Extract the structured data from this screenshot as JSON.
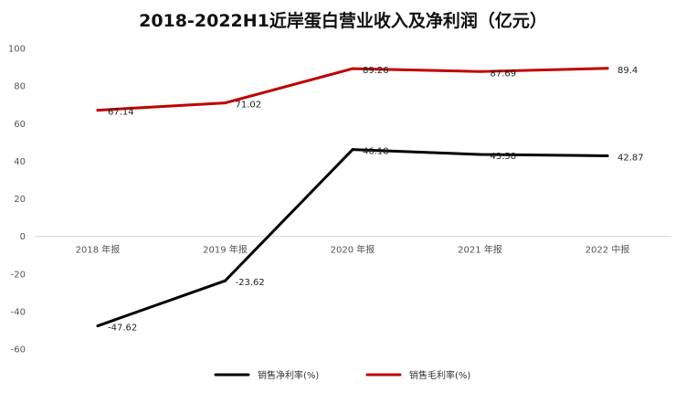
{
  "chart_data": {
    "type": "line",
    "title": "2018-2022H1近岸蛋白营业收入及净利润（亿元）",
    "categories": [
      "2018 年报",
      "2019 年报",
      "2020 年报",
      "2021 年报",
      "2022 中报"
    ],
    "series": [
      {
        "name": "销售净利率(%)",
        "color": "#000000",
        "values": [
          -47.62,
          -23.62,
          46.18,
          43.58,
          42.87
        ],
        "labels": [
          "-47.62",
          "-23.62",
          "46.18",
          "43.58",
          "42.87"
        ]
      },
      {
        "name": "销售毛利率(%)",
        "color": "#c00000",
        "values": [
          67.14,
          71.02,
          89.26,
          87.69,
          89.4
        ],
        "labels": [
          "67.14",
          "71.02",
          "89.26",
          "87.69",
          "89.4"
        ]
      }
    ],
    "yticks": [
      "100",
      "80",
      "60",
      "40",
      "20",
      "0",
      "-20",
      "-40",
      "-60"
    ],
    "ylim": [
      -60,
      100
    ],
    "grid": false,
    "legend": "bottom",
    "xlabel": "",
    "ylabel": ""
  }
}
